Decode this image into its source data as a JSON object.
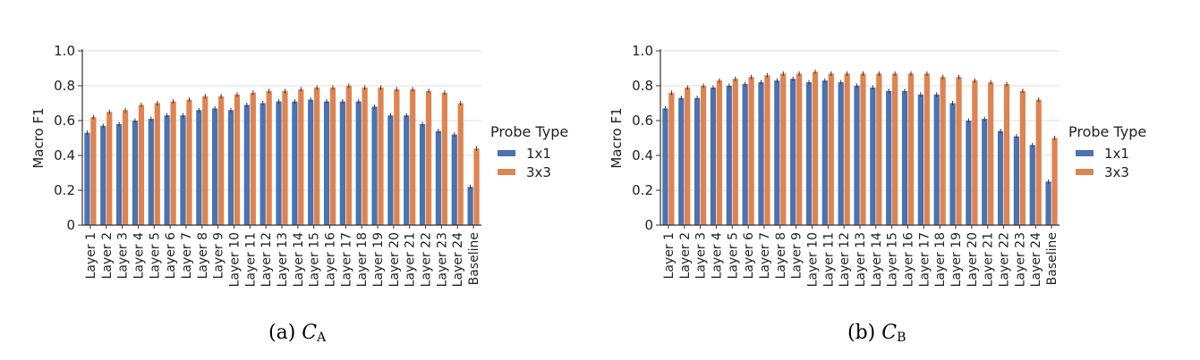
{
  "chart_data": [
    {
      "type": "bar",
      "ylabel": "Macro F1",
      "ylim": [
        0,
        1.0
      ],
      "yticks": [
        "0",
        "0.2",
        "0.4",
        "0.6",
        "0.8",
        "1.0"
      ],
      "grid": true,
      "legend": {
        "title": "Probe Type",
        "placement": "right"
      },
      "categories": [
        "Layer 1",
        "Layer 2",
        "Layer 3",
        "Layer 4",
        "Layer 5",
        "Layer 6",
        "Layer 7",
        "Layer 8",
        "Layer 9",
        "Layer 10",
        "Layer 11",
        "Layer 12",
        "Layer 13",
        "Layer 14",
        "Layer 15",
        "Layer 16",
        "Layer 17",
        "Layer 18",
        "Layer 19",
        "Layer 20",
        "Layer 21",
        "Layer 22",
        "Layer 23",
        "Layer 24",
        "Baseline"
      ],
      "series": [
        {
          "name": "1x1",
          "color": "#4c72b0",
          "values": [
            0.53,
            0.57,
            0.58,
            0.6,
            0.61,
            0.63,
            0.63,
            0.66,
            0.67,
            0.66,
            0.69,
            0.7,
            0.71,
            0.71,
            0.72,
            0.71,
            0.71,
            0.71,
            0.68,
            0.63,
            0.63,
            0.58,
            0.54,
            0.52,
            0.22
          ]
        },
        {
          "name": "3x3",
          "color": "#dd8452",
          "values": [
            0.62,
            0.65,
            0.66,
            0.69,
            0.7,
            0.71,
            0.72,
            0.74,
            0.74,
            0.75,
            0.76,
            0.77,
            0.77,
            0.78,
            0.79,
            0.79,
            0.8,
            0.79,
            0.79,
            0.78,
            0.78,
            0.77,
            0.76,
            0.7,
            0.44
          ]
        }
      ],
      "caption": {
        "prefix": "(a) ",
        "var": "C",
        "sub": "A"
      }
    },
    {
      "type": "bar",
      "ylabel": "Macro F1",
      "ylim": [
        0,
        1.0
      ],
      "yticks": [
        "0",
        "0.2",
        "0.4",
        "0.6",
        "0.8",
        "1.0"
      ],
      "grid": true,
      "legend": {
        "title": "Probe Type",
        "placement": "right"
      },
      "categories": [
        "Layer 1",
        "Layer 2",
        "Layer 3",
        "Layer 4",
        "Layer 5",
        "Layer 6",
        "Layer 7",
        "Layer 8",
        "Layer 9",
        "Layer 10",
        "Layer 11",
        "Layer 12",
        "Layer 13",
        "Layer 14",
        "Layer 15",
        "Layer 16",
        "Layer 17",
        "Layer 18",
        "Layer 19",
        "Layer 20",
        "Layer 21",
        "Layer 22",
        "Layer 23",
        "Layer 24",
        "Baseline"
      ],
      "series": [
        {
          "name": "1x1",
          "color": "#4c72b0",
          "values": [
            0.67,
            0.73,
            0.73,
            0.79,
            0.8,
            0.81,
            0.82,
            0.83,
            0.84,
            0.82,
            0.83,
            0.82,
            0.8,
            0.79,
            0.77,
            0.77,
            0.75,
            0.75,
            0.7,
            0.6,
            0.61,
            0.54,
            0.51,
            0.46,
            0.25
          ]
        },
        {
          "name": "3x3",
          "color": "#dd8452",
          "values": [
            0.76,
            0.79,
            0.8,
            0.83,
            0.84,
            0.85,
            0.86,
            0.87,
            0.87,
            0.88,
            0.87,
            0.87,
            0.87,
            0.87,
            0.87,
            0.87,
            0.87,
            0.85,
            0.85,
            0.83,
            0.82,
            0.81,
            0.77,
            0.72,
            0.5
          ]
        }
      ],
      "caption": {
        "prefix": "(b) ",
        "var": "C",
        "sub": "B"
      }
    }
  ]
}
